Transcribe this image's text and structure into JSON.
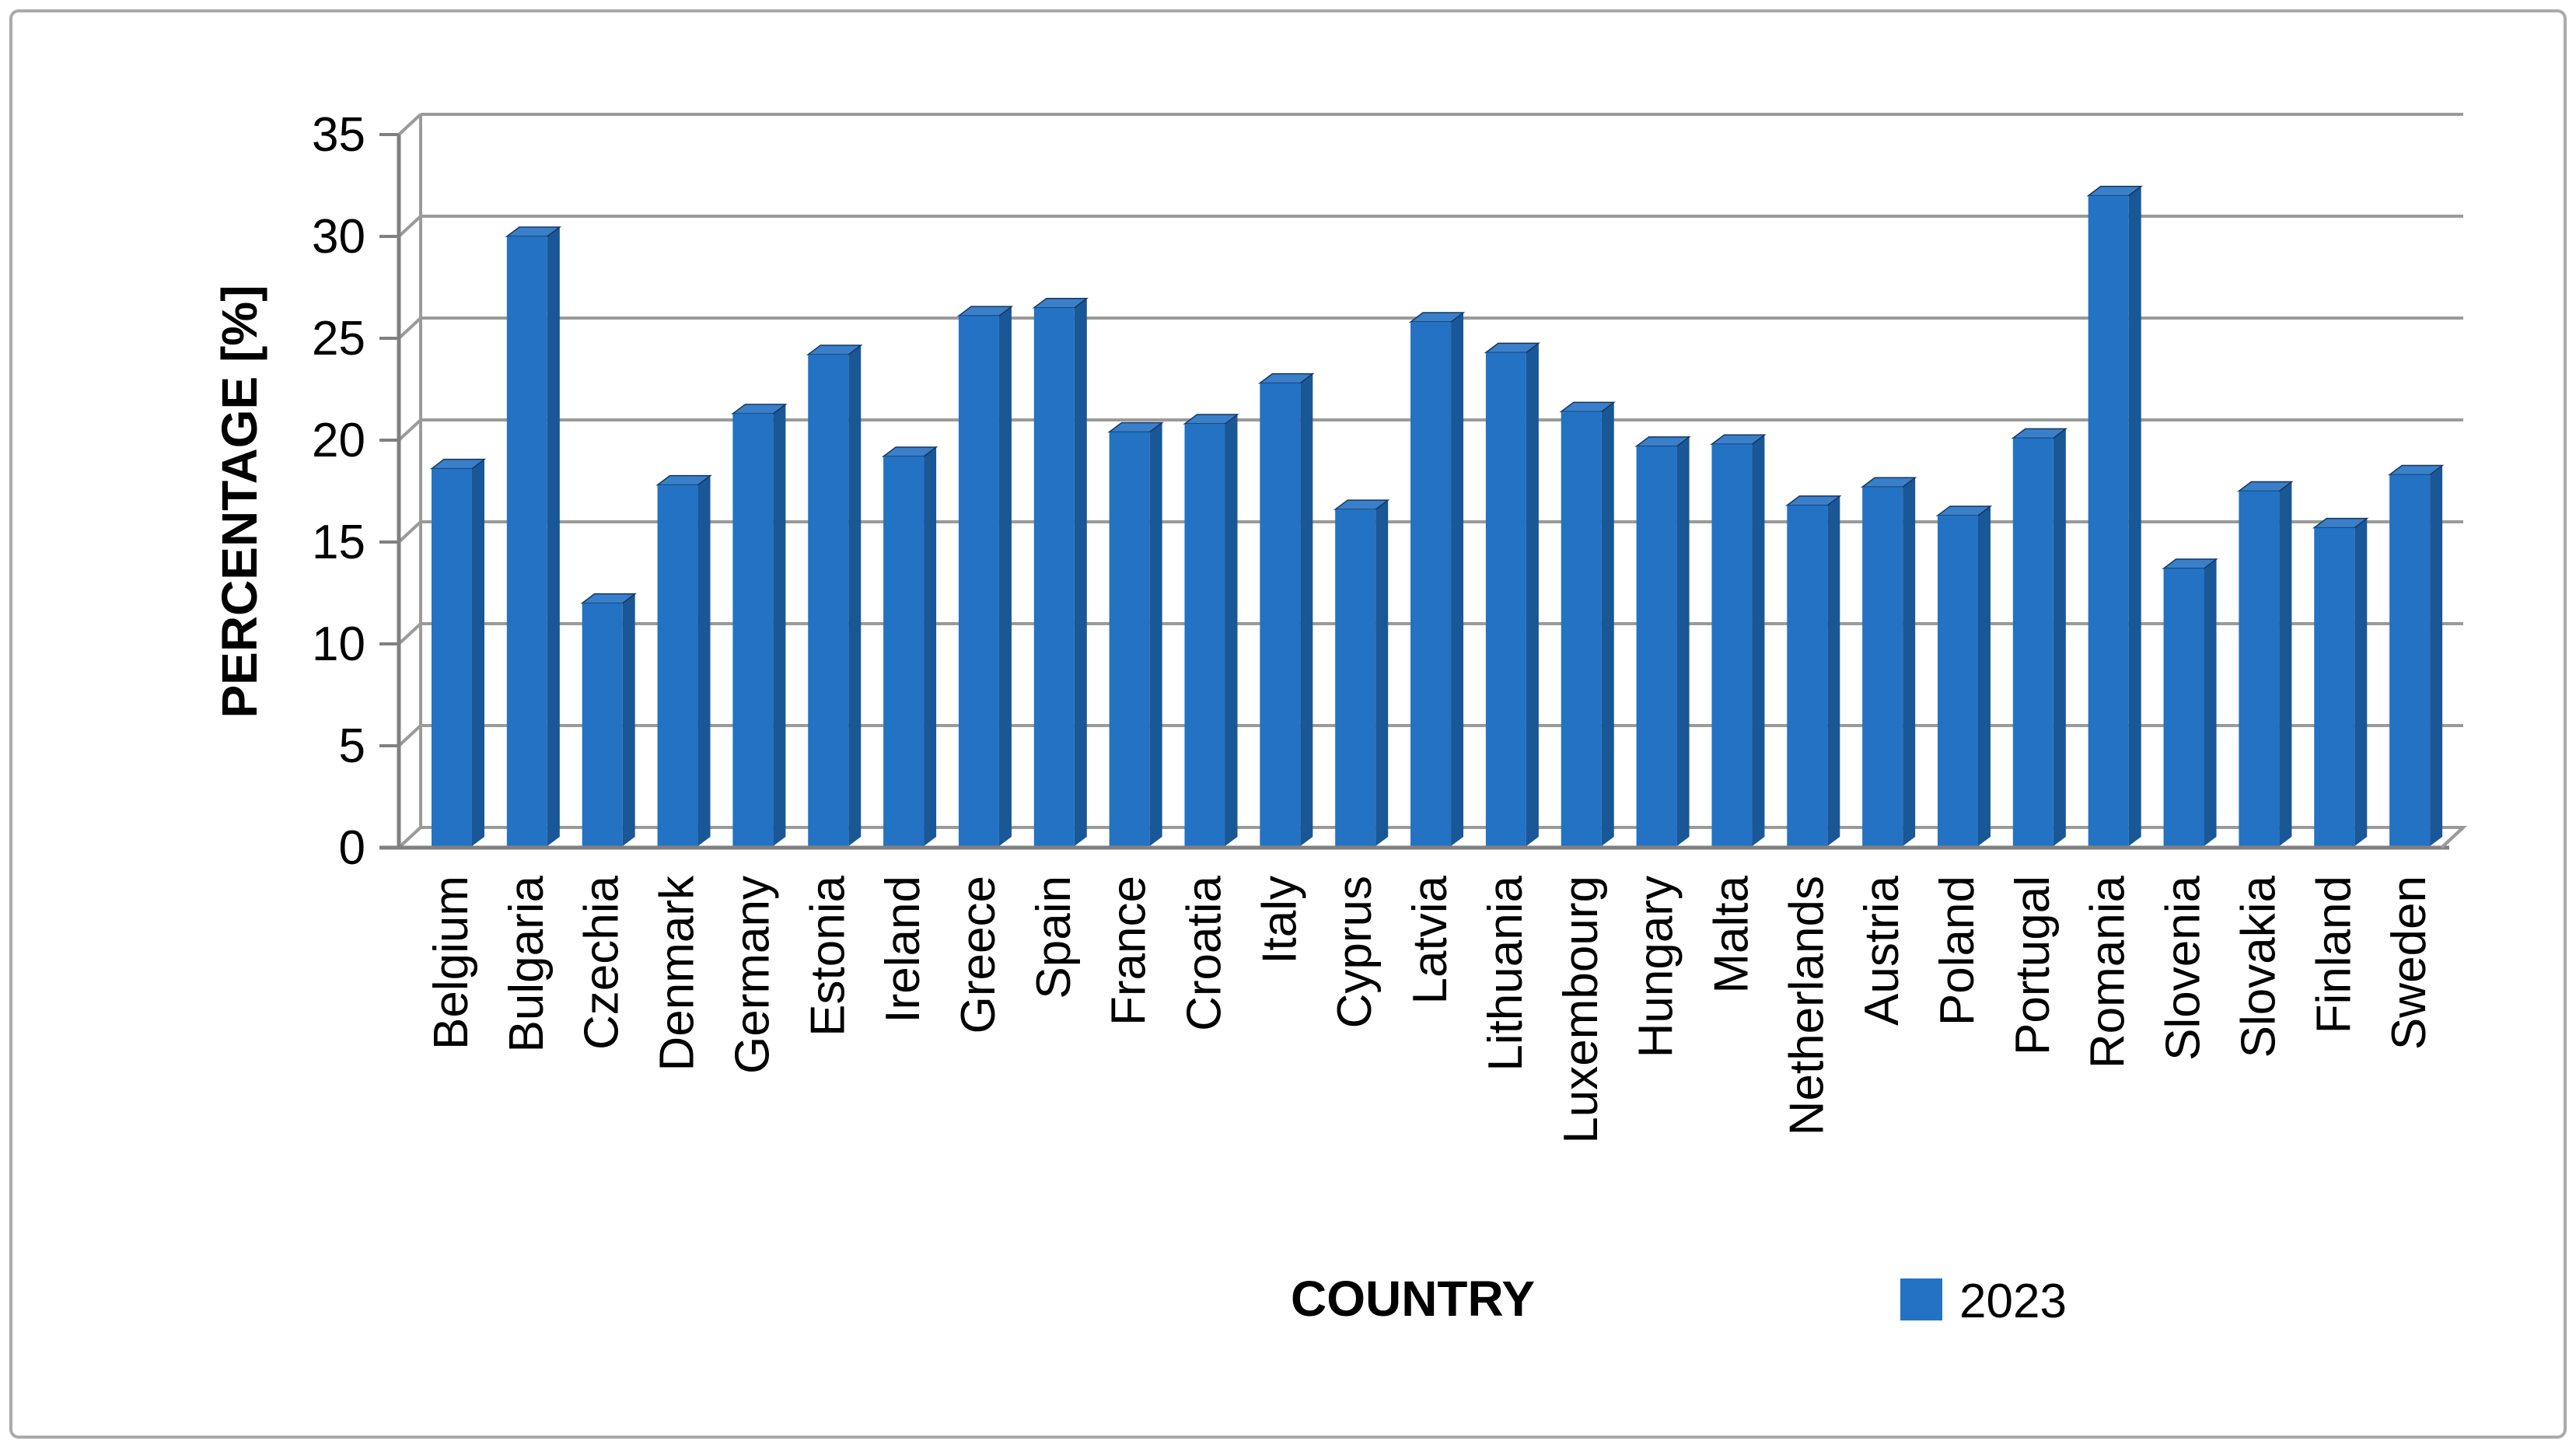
{
  "chart_data": {
    "type": "bar",
    "title": "",
    "categories": [
      "Belgium",
      "Bulgaria",
      "Czechia",
      "Denmark",
      "Germany",
      "Estonia",
      "Ireland",
      "Greece",
      "Spain",
      "France",
      "Croatia",
      "Italy",
      "Cyprus",
      "Latvia",
      "Lithuania",
      "Luxembourg",
      "Hungary",
      "Malta",
      "Netherlands",
      "Austria",
      "Poland",
      "Portugal",
      "Romania",
      "Slovenia",
      "Slovakia",
      "Finland",
      "Sweden"
    ],
    "series": [
      {
        "name": "2023",
        "values": [
          18.6,
          30.0,
          12.0,
          17.8,
          21.3,
          24.2,
          19.2,
          26.1,
          26.5,
          20.4,
          20.8,
          22.8,
          16.6,
          25.8,
          24.3,
          21.4,
          19.7,
          19.8,
          16.8,
          17.7,
          16.3,
          20.1,
          32.0,
          13.7,
          17.5,
          15.7,
          18.3
        ]
      }
    ],
    "xlabel": "COUNTRY",
    "ylabel": "PERCENTAGE [%]",
    "ylim": [
      0,
      35
    ],
    "yticks": [
      0,
      5,
      10,
      15,
      20,
      25,
      30,
      35
    ],
    "grid": true,
    "style": "excel-3d-column",
    "legend_position": "bottom-right",
    "colors": {
      "bar_front": "#2372c4",
      "bar_side": "#1a5796",
      "bar_top": "#3a7fc9",
      "bar_edge": "#16365c",
      "gridline": "#9a9a9a",
      "axis": "#808080",
      "text": "#000000",
      "border": "#ababab",
      "background": "#ffffff"
    }
  }
}
